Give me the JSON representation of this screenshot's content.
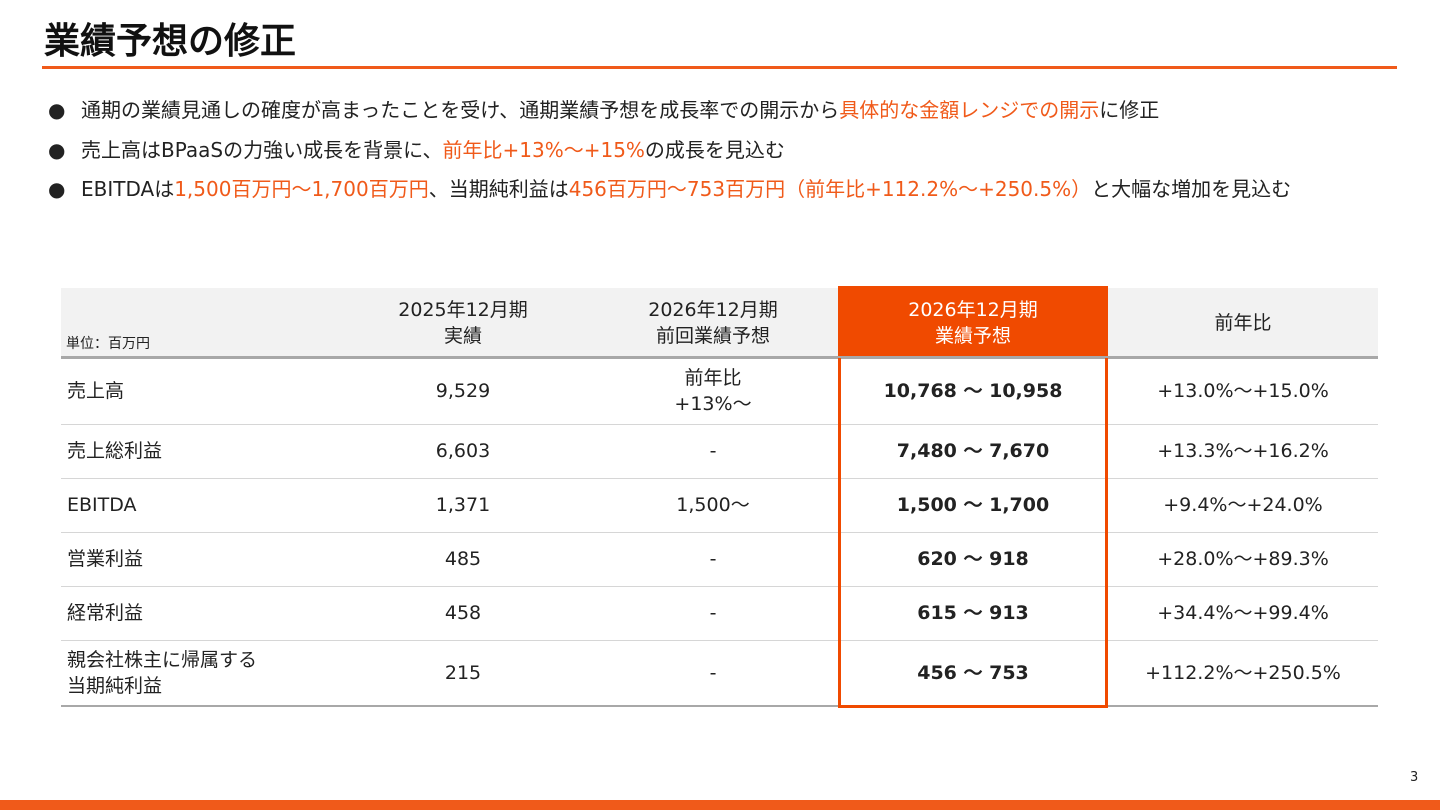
{
  "title": "業績予想の修正",
  "bullets": [
    [
      {
        "text": "通期の業績見通しの確度が高まったことを受け、通期業績予想を成長率での開示から",
        "color": "#222222"
      },
      {
        "text": "具体的な金額レンジでの開示",
        "color": "#f05a1a"
      },
      {
        "text": "に修正",
        "color": "#222222"
      }
    ],
    [
      {
        "text": "売上高はBPaaSの力強い成長を背景に、",
        "color": "#222222"
      },
      {
        "text": "前年比+13%〜+15%",
        "color": "#f05a1a"
      },
      {
        "text": "の成長を見込む",
        "color": "#222222"
      }
    ],
    [
      {
        "text": "EBITDAは",
        "color": "#222222"
      },
      {
        "text": "1,500百万円〜1,700百万円",
        "color": "#f05a1a"
      },
      {
        "text": "、当期純利益は",
        "color": "#222222"
      },
      {
        "text": "456百万円〜753百万円（前年比+112.2%〜+250.5%）",
        "color": "#f05a1a"
      },
      {
        "text": "と大幅な増加を見込む",
        "color": "#222222"
      }
    ]
  ],
  "table": {
    "unit": "単位：百万円",
    "columns": [
      [
        "2025年12月期",
        "実績"
      ],
      [
        "2026年12月期",
        "前回業績予想"
      ],
      [
        "2026年12月期",
        "業績予想"
      ],
      [
        "前年比"
      ]
    ],
    "rows": [
      {
        "label": [
          "売上高"
        ],
        "cells": [
          "9,529",
          [
            "前年比",
            "+13%〜"
          ],
          "10,768 〜 10,958",
          "+13.0%〜+15.0%"
        ]
      },
      {
        "label": [
          "売上総利益"
        ],
        "cells": [
          "6,603",
          "-",
          "7,480 〜 7,670",
          "+13.3%〜+16.2%"
        ]
      },
      {
        "label": [
          "EBITDA"
        ],
        "cells": [
          "1,371",
          "1,500〜",
          "1,500 〜 1,700",
          "+9.4%〜+24.0%"
        ]
      },
      {
        "label": [
          "営業利益"
        ],
        "cells": [
          "485",
          "-",
          "620 〜 918",
          "+28.0%〜+89.3%"
        ]
      },
      {
        "label": [
          "経常利益"
        ],
        "cells": [
          "458",
          "-",
          "615 〜 913",
          "+34.4%〜+99.4%"
        ]
      },
      {
        "label": [
          "親会社株主に帰属する",
          "当期純利益"
        ],
        "cells": [
          "215",
          "-",
          "456 〜 753",
          "+112.2%〜+250.5%"
        ]
      }
    ]
  },
  "page_number": "3"
}
